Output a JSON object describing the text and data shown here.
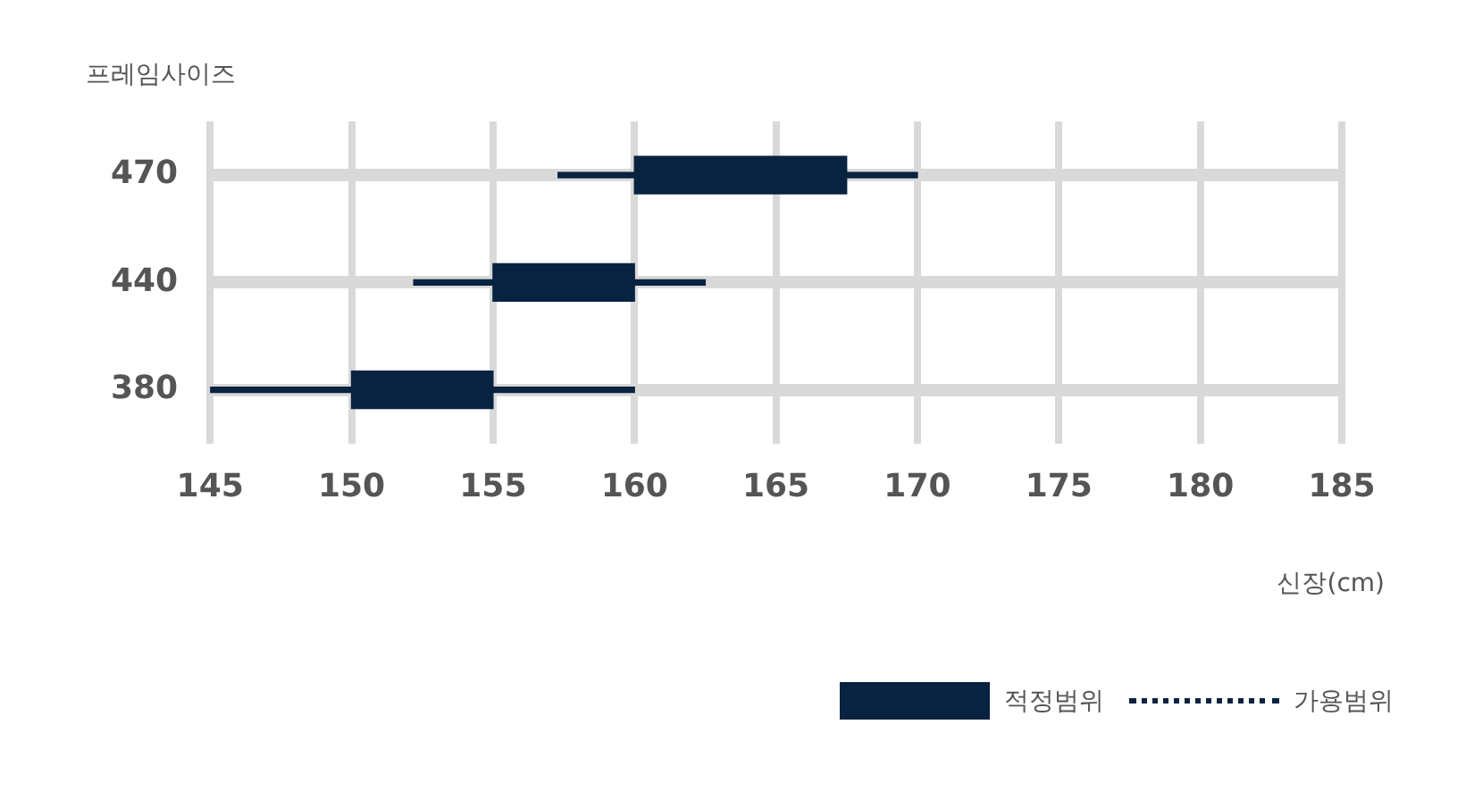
{
  "chart_data": {
    "type": "bar",
    "orientation": "horizontal",
    "ylabel": "프레임사이즈",
    "xlabel": "신장(cm)",
    "categories": [
      "470",
      "440",
      "380"
    ],
    "series": [
      {
        "name": "적정범위",
        "type": "bar",
        "color": "#082340",
        "base": [
          160,
          155,
          150
        ],
        "values": [
          7.5,
          5,
          5
        ],
        "line_style": "solid"
      },
      {
        "name": "가용범위",
        "type": "bar",
        "color": "#082340",
        "base": [
          157.3,
          152.2,
          145
        ],
        "values": [
          12.7,
          10.3,
          15
        ],
        "line_style": "dotted"
      }
    ],
    "xlim": [
      145,
      185
    ],
    "xticks": [
      145,
      150,
      155,
      160,
      165,
      170,
      175,
      180,
      185
    ],
    "grid": true,
    "legend": "bottom right"
  }
}
